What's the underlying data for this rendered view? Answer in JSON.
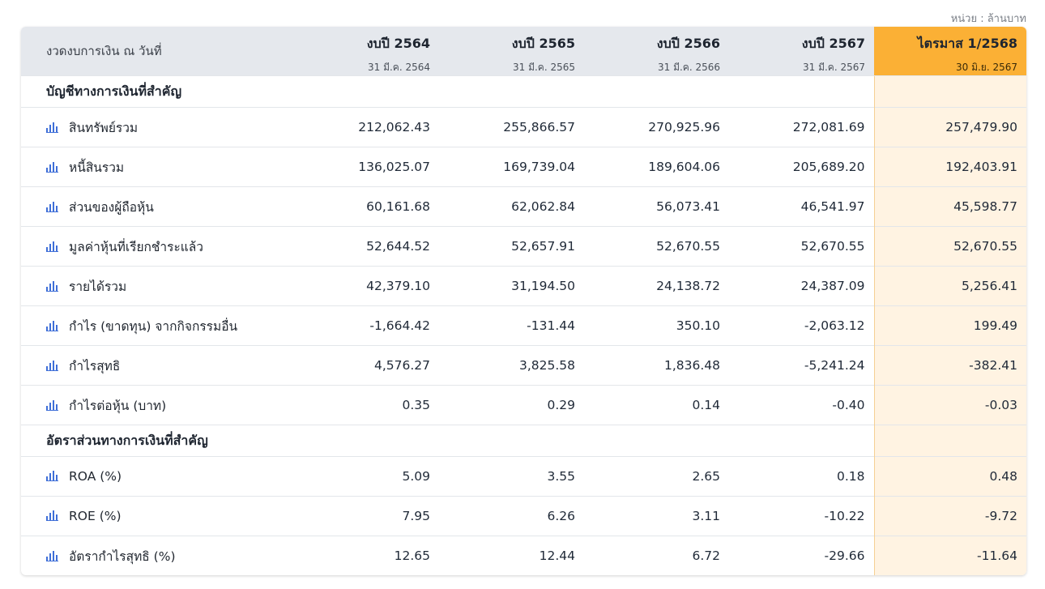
{
  "unit_label": "หน่วย : ล้านบาท",
  "header": {
    "period_label": "งวดงบการเงิน ณ วันที่",
    "columns": [
      {
        "title": "งบปี 2564",
        "date": "31 มี.ค. 2564"
      },
      {
        "title": "งบปี 2565",
        "date": "31 มี.ค. 2565"
      },
      {
        "title": "งบปี 2566",
        "date": "31 มี.ค. 2566"
      },
      {
        "title": "งบปี 2567",
        "date": "31 มี.ค. 2567"
      },
      {
        "title": "ไตรมาส 1/2568",
        "date": "30 มิ.ย. 2567"
      }
    ]
  },
  "colors": {
    "highlight_header": "#fbb035",
    "highlight_cell": "#fff3e2",
    "chart_icon": "#3f6fd8"
  },
  "sections": [
    {
      "title": "บัญชีทางการเงินที่สำคัญ",
      "rows": [
        {
          "icon": "bar-chart-icon",
          "label": "สินทรัพย์รวม",
          "values": [
            "212,062.43",
            "255,866.57",
            "270,925.96",
            "272,081.69",
            "257,479.90"
          ]
        },
        {
          "icon": "bar-chart-icon",
          "label": "หนี้สินรวม",
          "values": [
            "136,025.07",
            "169,739.04",
            "189,604.06",
            "205,689.20",
            "192,403.91"
          ]
        },
        {
          "icon": "bar-chart-icon",
          "label": "ส่วนของผู้ถือหุ้น",
          "values": [
            "60,161.68",
            "62,062.84",
            "56,073.41",
            "46,541.97",
            "45,598.77"
          ]
        },
        {
          "icon": "bar-chart-icon",
          "label": "มูลค่าหุ้นที่เรียกชำระแล้ว",
          "values": [
            "52,644.52",
            "52,657.91",
            "52,670.55",
            "52,670.55",
            "52,670.55"
          ]
        },
        {
          "icon": "bar-chart-icon",
          "label": "รายได้รวม",
          "values": [
            "42,379.10",
            "31,194.50",
            "24,138.72",
            "24,387.09",
            "5,256.41"
          ]
        },
        {
          "icon": "bar-chart-icon",
          "label": "กำไร (ขาดทุน) จากกิจกรรมอื่น",
          "values": [
            "-1,664.42",
            "-131.44",
            "350.10",
            "-2,063.12",
            "199.49"
          ]
        },
        {
          "icon": "bar-chart-icon",
          "label": "กำไรสุทธิ",
          "values": [
            "4,576.27",
            "3,825.58",
            "1,836.48",
            "-5,241.24",
            "-382.41"
          ]
        },
        {
          "icon": "bar-chart-icon",
          "label": "กำไรต่อหุ้น (บาท)",
          "values": [
            "0.35",
            "0.29",
            "0.14",
            "-0.40",
            "-0.03"
          ]
        }
      ]
    },
    {
      "title": "อัตราส่วนทางการเงินที่สำคัญ",
      "rows": [
        {
          "icon": "bar-chart-icon",
          "label": "ROA (%)",
          "values": [
            "5.09",
            "3.55",
            "2.65",
            "0.18",
            "0.48"
          ]
        },
        {
          "icon": "bar-chart-icon",
          "label": "ROE (%)",
          "values": [
            "7.95",
            "6.26",
            "3.11",
            "-10.22",
            "-9.72"
          ]
        },
        {
          "icon": "bar-chart-icon",
          "label": "อัตรากำไรสุทธิ (%)",
          "values": [
            "12.65",
            "12.44",
            "6.72",
            "-29.66",
            "-11.64"
          ]
        }
      ]
    }
  ]
}
